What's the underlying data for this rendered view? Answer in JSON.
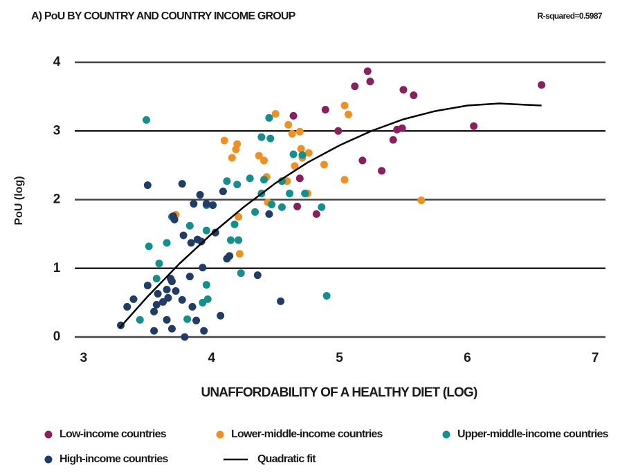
{
  "chart_data": {
    "type": "scatter",
    "title": "A) PoU BY COUNTRY AND COUNTRY INCOME GROUP",
    "annotation": "R-squared=0.5987",
    "x_label": "UNAFFORDABILITY OF A HEALTHY DIET (LOG)",
    "y_label": "PoU (log)",
    "xlim": [
      2.93,
      7.08
    ],
    "xticks": [
      3,
      4,
      5,
      6,
      7
    ],
    "ylim": [
      0,
      4
    ],
    "yticks": [
      0,
      1,
      2,
      3,
      4
    ],
    "grid": true,
    "series": [
      {
        "name": "Low-income countries",
        "color": "#8b1f5e",
        "x": [
          5.22,
          5.12,
          5.24,
          5.5,
          5.58,
          6.58,
          4.89,
          4.64,
          4.99,
          5.45,
          5.49,
          6.05,
          5.42,
          5.18,
          5.33,
          4.67,
          4.82,
          4.69
        ],
        "values": [
          3.87,
          3.65,
          3.72,
          3.6,
          3.52,
          3.67,
          3.31,
          3.22,
          3.0,
          3.02,
          3.04,
          3.07,
          2.87,
          2.57,
          2.42,
          1.9,
          1.79,
          2.31
        ]
      },
      {
        "name": "Lower-middle-income countries",
        "color": "#f0901e",
        "x": [
          4.5,
          5.04,
          5.07,
          4.45,
          4.6,
          4.69,
          4.63,
          4.39,
          4.1,
          4.2,
          4.19,
          4.7,
          4.76,
          4.71,
          4.37,
          4.41,
          4.16,
          4.65,
          4.88,
          4.43,
          4.59,
          5.04,
          4.75,
          5.64,
          4.44,
          3.72,
          4.21,
          4.22
        ],
        "values": [
          3.25,
          3.37,
          3.24,
          3.19,
          3.09,
          2.99,
          2.96,
          2.91,
          2.86,
          2.81,
          2.73,
          2.74,
          2.68,
          2.61,
          2.64,
          2.57,
          2.61,
          2.49,
          2.51,
          2.33,
          2.27,
          2.29,
          2.09,
          1.99,
          1.96,
          1.78,
          1.75,
          1.21
        ]
      },
      {
        "name": "Upper-middle-income countries",
        "color": "#11908e",
        "x": [
          3.49,
          4.45,
          4.39,
          4.46,
          4.64,
          4.71,
          4.12,
          4.2,
          4.3,
          4.41,
          4.55,
          4.39,
          4.61,
          4.73,
          3.96,
          4.47,
          4.55,
          4.86,
          4.34,
          3.69,
          4.18,
          3.83,
          3.96,
          3.51,
          3.65,
          4.15,
          4.21,
          3.59,
          4.23,
          3.57,
          3.96,
          4.9,
          3.93,
          3.97,
          3.81,
          3.44
        ],
        "values": [
          3.16,
          3.19,
          2.91,
          2.89,
          2.66,
          2.65,
          2.27,
          2.22,
          2.31,
          2.29,
          2.27,
          2.09,
          2.09,
          2.09,
          1.92,
          1.93,
          1.89,
          1.89,
          1.82,
          1.75,
          1.64,
          1.62,
          1.55,
          1.32,
          1.37,
          1.41,
          1.41,
          1.07,
          0.93,
          0.85,
          0.76,
          0.6,
          0.5,
          0.55,
          0.26,
          0.25
        ]
      },
      {
        "name": "High-income countries",
        "color": "#1f3d66",
        "x": [
          3.5,
          3.77,
          3.91,
          3.96,
          4.01,
          3.86,
          3.7,
          3.71,
          4.09,
          4.45,
          3.89,
          3.92,
          3.84,
          3.78,
          4.03,
          4.14,
          4.12,
          3.93,
          3.83,
          4.36,
          3.68,
          3.5,
          3.69,
          3.65,
          3.58,
          3.72,
          3.77,
          3.66,
          3.62,
          3.57,
          3.39,
          3.34,
          4.54,
          3.85,
          4.07,
          3.55,
          3.65,
          3.88,
          3.55,
          3.69,
          3.94,
          3.29,
          3.79
        ],
        "values": [
          2.21,
          2.23,
          2.07,
          1.94,
          1.92,
          1.94,
          1.76,
          1.71,
          2.12,
          1.79,
          1.42,
          1.39,
          1.37,
          1.48,
          1.52,
          1.18,
          1.14,
          1.01,
          0.88,
          0.9,
          0.85,
          0.75,
          0.81,
          0.69,
          0.63,
          0.67,
          0.54,
          0.57,
          0.51,
          0.47,
          0.55,
          0.44,
          0.52,
          0.44,
          0.31,
          0.37,
          0.25,
          0.24,
          0.09,
          0.12,
          0.09,
          0.17,
          0.0
        ]
      }
    ],
    "fit": {
      "name": "Quadratic fit",
      "color": "#000000",
      "x": [
        3.28,
        3.5,
        3.75,
        4,
        4.25,
        4.5,
        4.75,
        5,
        5.25,
        5.5,
        5.75,
        6,
        6.25,
        6.58
      ],
      "values": [
        0.13,
        0.59,
        1.07,
        1.5,
        1.89,
        2.24,
        2.54,
        2.79,
        3.0,
        3.17,
        3.29,
        3.37,
        3.4,
        3.37
      ]
    }
  }
}
